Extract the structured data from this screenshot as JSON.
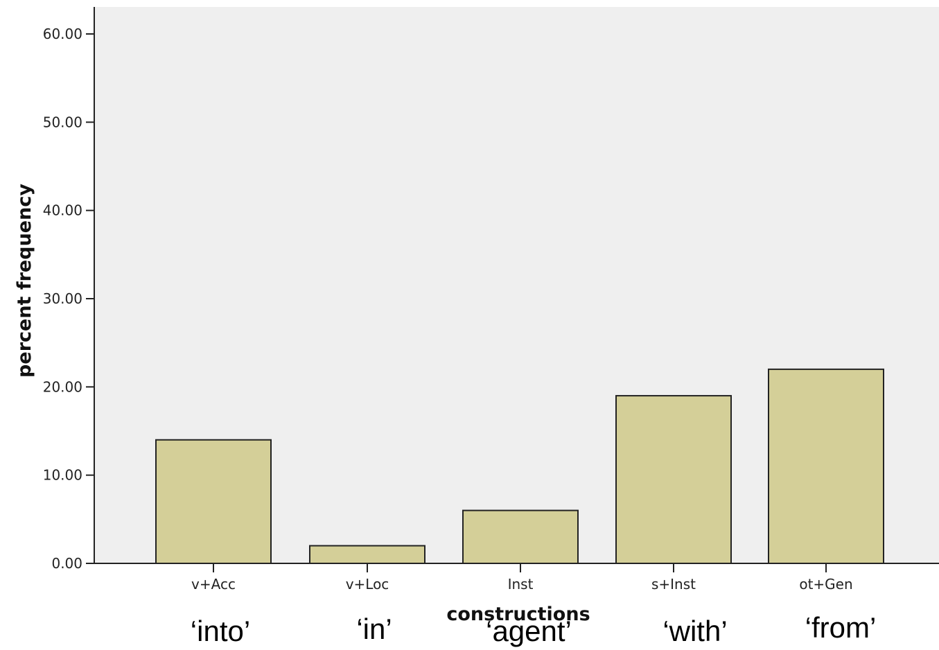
{
  "chart_data": {
    "type": "bar",
    "categories": [
      "v+Acc",
      "v+Loc",
      "Inst",
      "s+Inst",
      "ot+Gen"
    ],
    "glosses": [
      "‘into’",
      "‘in’",
      "‘agent’",
      "‘with’",
      "‘from’"
    ],
    "values": [
      14,
      2,
      6,
      19,
      22
    ],
    "yticks": [
      "0.00",
      "10.00",
      "20.00",
      "30.00",
      "40.00",
      "50.00",
      "60.00"
    ],
    "ylim": [
      0,
      63
    ],
    "xlabel": "constructions",
    "ylabel": "percent frequency",
    "grid": false,
    "colors": {
      "bar_fill": "#d4cf98",
      "bar_stroke": "#222222",
      "plot_background": "#efefef",
      "axis": "#222222"
    }
  }
}
